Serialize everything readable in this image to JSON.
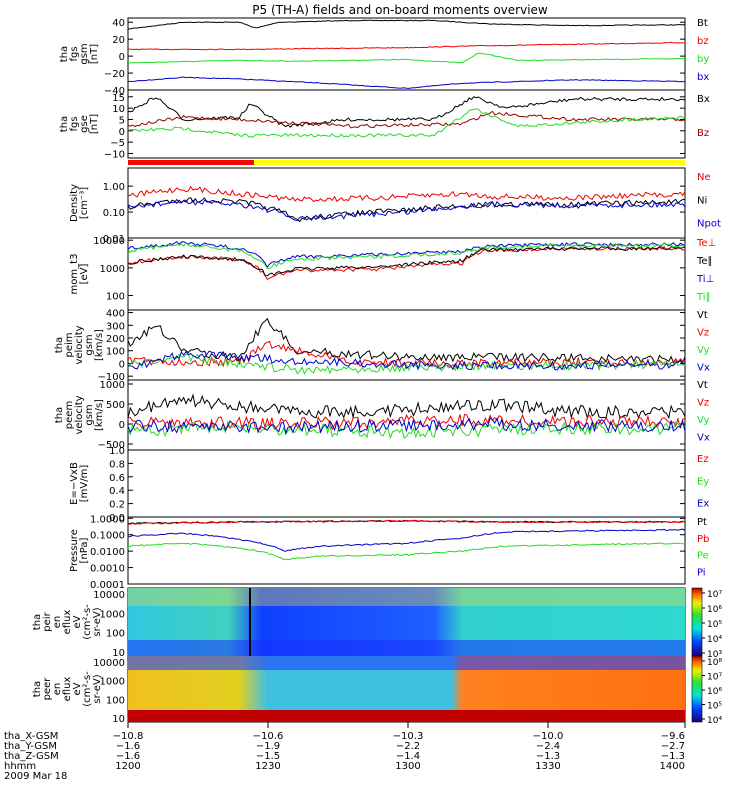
{
  "title": "P5 (TH-A) fields and on-board moments overview",
  "colors": {
    "black": "#000000",
    "red": "#ee0000",
    "green": "#22dd22",
    "blue": "#0000cc",
    "dark_red": "#990000",
    "state_red": "#ff0000",
    "state_yellow": "#ffff00"
  },
  "panels": [
    {
      "id": "fgs-gsm",
      "ylabel": [
        "tha",
        "fgs",
        "gsm",
        "[nT]"
      ],
      "yticks": [
        "40",
        "20",
        "0",
        "−20",
        "−40"
      ],
      "legend": [
        {
          "text": "Bt",
          "color": "black"
        },
        {
          "text": "bz",
          "color": "red"
        },
        {
          "text": "by",
          "color": "green"
        },
        {
          "text": "bx",
          "color": "blue"
        }
      ]
    },
    {
      "id": "fgs-gse",
      "ylabel": [
        "tha",
        "fgs",
        "gse",
        "[nT]"
      ],
      "yticks": [
        "15",
        "10",
        "5",
        "0",
        "−5",
        "−10"
      ],
      "legend": [
        {
          "text": "Bx",
          "color": "black"
        },
        {
          "text": "Bz",
          "color": "dark_red"
        }
      ]
    },
    {
      "id": "density",
      "ylabel": [
        "Density",
        "[cm⁻³]"
      ],
      "yticks": [
        "1.00",
        "0.10",
        "0.01"
      ],
      "legend": [
        {
          "text": "Ne",
          "color": "red"
        },
        {
          "text": "Ni",
          "color": "black"
        },
        {
          "text": "Npot",
          "color": "blue"
        }
      ]
    },
    {
      "id": "temperature",
      "ylabel": [
        "mom_t3",
        "[eV]"
      ],
      "yticks": [
        "10000",
        "1000",
        "100"
      ],
      "legend": [
        {
          "text": "Te⊥",
          "color": "red"
        },
        {
          "text": "Te∥",
          "color": "black"
        },
        {
          "text": "Ti⊥",
          "color": "blue"
        },
        {
          "text": "Ti∥",
          "color": "green"
        }
      ]
    },
    {
      "id": "ion-velocity",
      "ylabel": [
        "tha",
        "peim",
        "velocity",
        "gsm",
        "[km/s]"
      ],
      "yticks": [
        "400",
        "300",
        "200",
        "100",
        "0",
        "−100"
      ],
      "legend": [
        {
          "text": "Vt",
          "color": "black"
        },
        {
          "text": "Vz",
          "color": "red"
        },
        {
          "text": "Vy",
          "color": "green"
        },
        {
          "text": "Vx",
          "color": "blue"
        }
      ]
    },
    {
      "id": "electron-velocity",
      "ylabel": [
        "tha",
        "peem",
        "velocity",
        "gsm",
        "[km/s]"
      ],
      "yticks": [
        "1000",
        "500",
        "0",
        "−500"
      ],
      "legend": [
        {
          "text": "Vt",
          "color": "black"
        },
        {
          "text": "Vz",
          "color": "red"
        },
        {
          "text": "Vy",
          "color": "green"
        },
        {
          "text": "Vx",
          "color": "blue"
        }
      ]
    },
    {
      "id": "efield",
      "ylabel": [
        "E=−VxB",
        "[mV/m]"
      ],
      "yticks": [
        "1.0",
        "0.8",
        "0.6",
        "0.4",
        "0.2",
        "0.0"
      ],
      "legend": [
        {
          "text": "Ez",
          "color": "red"
        },
        {
          "text": "Ey",
          "color": "green"
        },
        {
          "text": "Ex",
          "color": "blue"
        }
      ]
    },
    {
      "id": "pressure",
      "ylabel": [
        "Pressure",
        "[nPa]"
      ],
      "yticks": [
        "1.0000",
        "0.1000",
        "0.0100",
        "0.0010",
        "0.0001"
      ],
      "legend": [
        {
          "text": "Pt",
          "color": "black"
        },
        {
          "text": "Pb",
          "color": "red"
        },
        {
          "text": "Pe",
          "color": "green"
        },
        {
          "text": "Pi",
          "color": "blue"
        }
      ]
    },
    {
      "id": "ion-spectrogram",
      "ylabel": [
        "tha",
        "peir",
        "en",
        "eflux",
        "eV",
        "(cm²-s-",
        "sr-eV)"
      ],
      "yticks": [
        "10000",
        "1000",
        "100",
        "10"
      ],
      "colorbar": [
        "10⁷",
        "10⁶",
        "10⁵",
        "10⁴",
        "10³"
      ]
    },
    {
      "id": "electron-spectrogram",
      "ylabel": [
        "tha",
        "peer",
        "en",
        "eflux",
        "eV",
        "(cm²-s-",
        "sr-eV)"
      ],
      "yticks": [
        "10000",
        "1000",
        "100",
        "10"
      ],
      "colorbar": [
        "10⁸",
        "10⁷",
        "10⁶",
        "10⁵",
        "10⁴"
      ]
    }
  ],
  "xaxis": {
    "rows": [
      {
        "label": "tha_X-GSM",
        "values": [
          "−10.8",
          "−10.6",
          "−10.3",
          "−10.0",
          "−9.6"
        ]
      },
      {
        "label": "tha_Y-GSM",
        "values": [
          "−1.6",
          "−1.9",
          "−2.2",
          "−2.4",
          "−2.7"
        ]
      },
      {
        "label": "tha_Z-GSM",
        "values": [
          "−1.6",
          "−1.5",
          "−1.4",
          "−1.3",
          "−1.3"
        ]
      },
      {
        "label": "hhmm",
        "values": [
          "1200",
          "1230",
          "1300",
          "1330",
          "1400"
        ]
      }
    ],
    "date": "2009 Mar 18"
  },
  "chart_data": {
    "type": "line",
    "time_ticks": [
      "1200",
      "1230",
      "1300",
      "1330",
      "1400"
    ],
    "series": [
      {
        "panel": "fgs-gsm",
        "name": "Bt",
        "color": "black",
        "t": [
          0,
          0.1,
          0.2,
          0.23,
          0.27,
          0.4,
          0.55,
          0.65,
          0.8,
          1.0
        ],
        "y": [
          32,
          40,
          40,
          33,
          40,
          42,
          42,
          38,
          36,
          37
        ]
      },
      {
        "panel": "fgs-gsm",
        "name": "bz",
        "color": "red",
        "t": [
          0,
          0.2,
          0.5,
          0.62,
          0.8,
          1.0
        ],
        "y": [
          8,
          8,
          10,
          12,
          14,
          16
        ]
      },
      {
        "panel": "fgs-gsm",
        "name": "by",
        "color": "green",
        "t": [
          0,
          0.2,
          0.3,
          0.5,
          0.6,
          0.63,
          0.7,
          1.0
        ],
        "y": [
          -8,
          -5,
          -6,
          -4,
          -8,
          4,
          -5,
          -3
        ]
      },
      {
        "panel": "fgs-gsm",
        "name": "bx",
        "color": "blue",
        "t": [
          0,
          0.1,
          0.2,
          0.35,
          0.5,
          0.6,
          0.8,
          1.0
        ],
        "y": [
          -30,
          -25,
          -27,
          -32,
          -38,
          -32,
          -28,
          -30
        ]
      },
      {
        "panel": "fgs-gse",
        "name": "Bx",
        "color": "black",
        "t": [
          0,
          0.05,
          0.1,
          0.2,
          0.22,
          0.28,
          0.4,
          0.55,
          0.62,
          0.68,
          0.8,
          1.0
        ],
        "y": [
          8,
          15,
          5,
          6,
          12,
          2,
          5,
          5,
          15,
          10,
          14,
          14
        ]
      },
      {
        "panel": "fgs-gse",
        "name": "Bz",
        "color": "dark_red",
        "t": [
          0,
          0.1,
          0.2,
          0.4,
          0.6,
          0.65,
          0.8,
          1.0
        ],
        "y": [
          2,
          6,
          5,
          2,
          3,
          8,
          5,
          5
        ]
      },
      {
        "panel": "fgs-gse",
        "name": "By",
        "color": "green",
        "t": [
          0,
          0.1,
          0.2,
          0.4,
          0.55,
          0.62,
          0.7,
          0.9,
          1.0
        ],
        "y": [
          0,
          1,
          -2,
          -2,
          -2,
          10,
          2,
          5,
          6
        ]
      },
      {
        "panel": "density",
        "name": "Ne",
        "color": "red",
        "t": [
          0,
          0.1,
          0.2,
          0.3,
          0.45,
          0.6,
          0.65,
          0.8,
          1.0
        ],
        "y": [
          0.4,
          0.8,
          0.5,
          0.3,
          0.35,
          0.5,
          0.4,
          0.35,
          0.5
        ]
      },
      {
        "panel": "density",
        "name": "Ni",
        "color": "black",
        "t": [
          0,
          0.1,
          0.2,
          0.3,
          0.5,
          0.65,
          0.8,
          1.0
        ],
        "y": [
          0.15,
          0.3,
          0.25,
          0.05,
          0.12,
          0.2,
          0.2,
          0.25
        ]
      },
      {
        "panel": "density",
        "name": "Npot",
        "color": "blue",
        "t": [
          0,
          0.1,
          0.2,
          0.3,
          0.5,
          0.65,
          0.8,
          1.0
        ],
        "y": [
          0.15,
          0.25,
          0.2,
          0.05,
          0.1,
          0.2,
          0.18,
          0.2
        ]
      },
      {
        "panel": "temperature",
        "name": "Te⊥",
        "color": "red",
        "t": [
          0,
          0.1,
          0.2,
          0.25,
          0.3,
          0.45,
          0.6,
          0.64,
          0.8,
          1.0
        ],
        "y": [
          1500,
          2500,
          2000,
          400,
          800,
          900,
          1500,
          4000,
          5000,
          5000
        ]
      },
      {
        "panel": "temperature",
        "name": "Te∥",
        "color": "black",
        "t": [
          0,
          0.1,
          0.2,
          0.25,
          0.3,
          0.45,
          0.6,
          0.64,
          0.8,
          1.0
        ],
        "y": [
          1500,
          2500,
          2000,
          500,
          900,
          1100,
          1800,
          4500,
          5000,
          5000
        ]
      },
      {
        "panel": "temperature",
        "name": "Ti⊥",
        "color": "blue",
        "t": [
          0,
          0.1,
          0.2,
          0.25,
          0.3,
          0.45,
          0.6,
          0.64,
          0.8,
          1.0
        ],
        "y": [
          5000,
          8000,
          5000,
          1200,
          2500,
          3000,
          4000,
          6000,
          7000,
          7000
        ]
      },
      {
        "panel": "temperature",
        "name": "Ti∥",
        "color": "green",
        "t": [
          0,
          0.1,
          0.2,
          0.25,
          0.3,
          0.45,
          0.6,
          0.64,
          0.8,
          1.0
        ],
        "y": [
          4000,
          7000,
          4000,
          1000,
          2000,
          2500,
          3500,
          5500,
          6500,
          6500
        ]
      },
      {
        "panel": "ion-velocity",
        "name": "Vt",
        "color": "black",
        "t": [
          0,
          0.05,
          0.1,
          0.2,
          0.25,
          0.3,
          0.5,
          0.7,
          1.0
        ],
        "y": [
          150,
          300,
          100,
          50,
          350,
          100,
          50,
          50,
          30
        ]
      },
      {
        "panel": "ion-velocity",
        "name": "Vz",
        "color": "red",
        "t": [
          0,
          0.2,
          0.25,
          0.4,
          0.6,
          0.8,
          1.0
        ],
        "y": [
          20,
          10,
          150,
          10,
          0,
          10,
          5
        ]
      },
      {
        "panel": "ion-velocity",
        "name": "Vy",
        "color": "green",
        "t": [
          0,
          0.1,
          0.3,
          0.5,
          0.7,
          1.0
        ],
        "y": [
          -20,
          50,
          -50,
          -30,
          -20,
          -10
        ]
      },
      {
        "panel": "ion-velocity",
        "name": "Vx",
        "color": "blue",
        "t": [
          0,
          0.1,
          0.3,
          0.5,
          0.7,
          1.0
        ],
        "y": [
          -50,
          80,
          20,
          -10,
          -20,
          -10
        ]
      },
      {
        "panel": "electron-velocity",
        "name": "Vt",
        "color": "black",
        "t": [
          0,
          0.1,
          0.3,
          0.5,
          0.65,
          0.8,
          1.0
        ],
        "y": [
          300,
          600,
          300,
          350,
          500,
          300,
          300
        ]
      },
      {
        "panel": "electron-velocity",
        "name": "Vz",
        "color": "red",
        "t": [
          0,
          0.3,
          0.6,
          1.0
        ],
        "y": [
          50,
          0,
          100,
          20
        ]
      },
      {
        "panel": "electron-velocity",
        "name": "Vy",
        "color": "green",
        "t": [
          0,
          0.2,
          0.5,
          0.8,
          1.0
        ],
        "y": [
          -150,
          -100,
          -200,
          -120,
          -100
        ]
      },
      {
        "panel": "electron-velocity",
        "name": "Vx",
        "color": "blue",
        "t": [
          0,
          0.3,
          0.6,
          1.0
        ],
        "y": [
          -50,
          -80,
          0,
          -50
        ]
      },
      {
        "panel": "pressure",
        "name": "Pt",
        "color": "black",
        "t": [
          0,
          0.2,
          0.5,
          0.65,
          1.0
        ],
        "y": [
          0.5,
          0.6,
          0.7,
          0.6,
          0.6
        ]
      },
      {
        "panel": "pressure",
        "name": "Pb",
        "color": "red",
        "t": [
          0,
          0.2,
          0.5,
          0.65,
          1.0
        ],
        "y": [
          0.45,
          0.6,
          0.7,
          0.6,
          0.6
        ]
      },
      {
        "panel": "pressure",
        "name": "Pi",
        "color": "blue",
        "t": [
          0,
          0.1,
          0.2,
          0.28,
          0.35,
          0.5,
          0.6,
          0.68,
          1.0
        ],
        "y": [
          0.08,
          0.12,
          0.05,
          0.01,
          0.02,
          0.03,
          0.06,
          0.15,
          0.2
        ]
      },
      {
        "panel": "pressure",
        "name": "Pe",
        "color": "green",
        "t": [
          0,
          0.1,
          0.2,
          0.28,
          0.35,
          0.5,
          0.6,
          0.68,
          1.0
        ],
        "y": [
          0.02,
          0.03,
          0.015,
          0.003,
          0.005,
          0.006,
          0.01,
          0.02,
          0.03
        ]
      }
    ]
  }
}
